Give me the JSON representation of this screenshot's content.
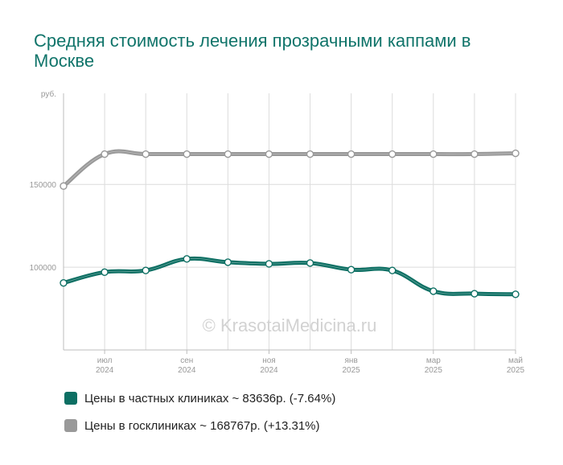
{
  "chart_data": {
    "type": "line",
    "title": "Средняя стоимость лечения прозрачными каппами в Москве",
    "ylabel": "руб.",
    "ylim": [
      50000,
      205000
    ],
    "yticks": [
      100000,
      150000
    ],
    "ytick_labels": [
      "100000",
      "150000"
    ],
    "x": [
      "2024-06",
      "2024-07",
      "2024-08",
      "2024-09",
      "2024-10",
      "2024-11",
      "2024-12",
      "2025-01",
      "2025-02",
      "2025-03",
      "2025-04",
      "2025-05"
    ],
    "x_tick_labels": [
      {
        "index": 1,
        "month": "июл",
        "year": "2024"
      },
      {
        "index": 3,
        "month": "сен",
        "year": "2024"
      },
      {
        "index": 5,
        "month": "ноя",
        "year": "2024"
      },
      {
        "index": 7,
        "month": "янв",
        "year": "2025"
      },
      {
        "index": 9,
        "month": "мар",
        "year": "2025"
      },
      {
        "index": 11,
        "month": "май",
        "year": "2025"
      }
    ],
    "grid": true,
    "legend_position": "bottom",
    "watermark": "© KrasotaiMedicina.ru",
    "series": [
      {
        "name": "Цены в частных клиниках ~ 83636р. (-7.64%)",
        "color": "#0d6f63",
        "values": [
          90500,
          97000,
          98000,
          105000,
          103000,
          102000,
          102500,
          98500,
          98000,
          85500,
          84000,
          83636
        ]
      },
      {
        "name": "Цены в госклиниках ~ 168767р. (+13.31%)",
        "color": "#999999",
        "values": [
          149000,
          168300,
          168300,
          168300,
          168300,
          168300,
          168300,
          168300,
          168300,
          168300,
          168300,
          168767
        ]
      }
    ]
  }
}
